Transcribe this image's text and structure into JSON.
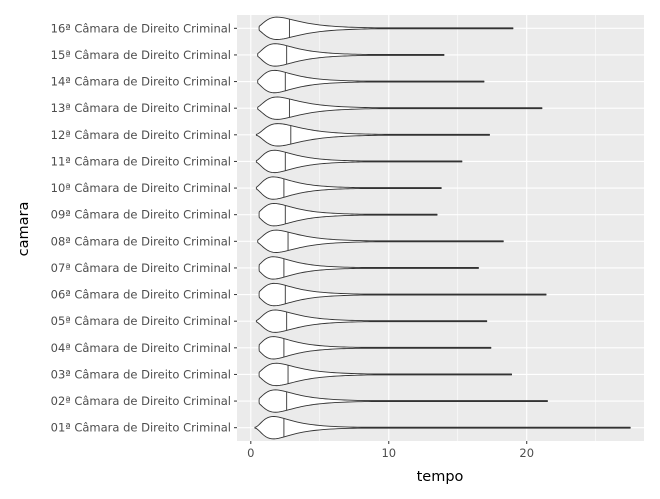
{
  "chart_data": {
    "type": "violin",
    "orientation": "horizontal",
    "xlabel": "tempo",
    "ylabel": "camara",
    "xlim": [
      -1,
      28.5
    ],
    "xticks": [
      0,
      10,
      20
    ],
    "xtick_labels": [
      "0",
      "10",
      "20"
    ],
    "grid": true,
    "panel_background": "#ebebeb",
    "grid_color": "#ffffff",
    "outline_color": "#333333",
    "categories": [
      "01ª Câmara de Direito Criminal",
      "02ª Câmara de Direito Criminal",
      "03ª Câmara de Direito Criminal",
      "04ª Câmara de Direito Criminal",
      "05ª Câmara de Direito Criminal",
      "06ª Câmara de Direito Criminal",
      "07ª Câmara de Direito Criminal",
      "08ª Câmara de Direito Criminal",
      "09ª Câmara de Direito Criminal",
      "10ª Câmara de Direito Criminal",
      "11ª Câmara de Direito Criminal",
      "12ª Câmara de Direito Criminal",
      "13ª Câmara de Direito Criminal",
      "14ª Câmara de Direito Criminal",
      "15ª Câmara de Direito Criminal",
      "16ª Câmara de Direito Criminal"
    ],
    "violins": [
      {
        "min": 0.3,
        "max": 27.5,
        "median": 2.4
      },
      {
        "min": 0.6,
        "max": 21.5,
        "median": 2.6
      },
      {
        "min": 0.6,
        "max": 18.9,
        "median": 2.7
      },
      {
        "min": 0.6,
        "max": 17.4,
        "median": 2.4
      },
      {
        "min": 0.4,
        "max": 17.1,
        "median": 2.6
      },
      {
        "min": 0.6,
        "max": 21.4,
        "median": 2.5
      },
      {
        "min": 0.6,
        "max": 16.5,
        "median": 2.4
      },
      {
        "min": 0.5,
        "max": 18.3,
        "median": 2.7
      },
      {
        "min": 0.6,
        "max": 13.5,
        "median": 2.5
      },
      {
        "min": 0.4,
        "max": 13.8,
        "median": 2.4
      },
      {
        "min": 0.4,
        "max": 15.3,
        "median": 2.5
      },
      {
        "min": 0.4,
        "max": 17.3,
        "median": 2.9
      },
      {
        "min": 0.5,
        "max": 21.1,
        "median": 2.8
      },
      {
        "min": 0.5,
        "max": 16.9,
        "median": 2.5
      },
      {
        "min": 0.5,
        "max": 14.0,
        "median": 2.6
      },
      {
        "min": 0.6,
        "max": 19.0,
        "median": 2.8
      }
    ]
  }
}
